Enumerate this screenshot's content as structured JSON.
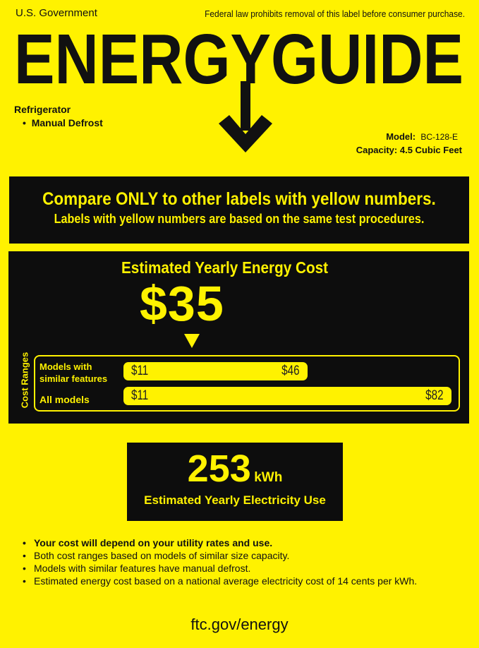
{
  "header": {
    "left": "U.S. Government",
    "right": "Federal law prohibits removal of this label before consumer purchase.",
    "title": "ENERGYGUIDE"
  },
  "product": {
    "type": "Refrigerator",
    "feature": "Manual Defrost",
    "model_label": "Model:",
    "model": "BC-128-E",
    "capacity_label": "Capacity:",
    "capacity": "4.5 Cubic Feet"
  },
  "compare": {
    "line1": "Compare ONLY to other labels with yellow numbers.",
    "line2": "Labels with yellow numbers are based on the same test procedures."
  },
  "cost": {
    "heading": "Estimated Yearly Energy Cost",
    "value": "$35",
    "ranges_label": "Cost Ranges",
    "similar": {
      "label1": "Models with",
      "label2": "similar features",
      "min": "$11",
      "max": "$46"
    },
    "all": {
      "label": "All models",
      "min": "$11",
      "max": "$82"
    }
  },
  "electricity": {
    "value": "253",
    "unit": "kWh",
    "label": "Estimated Yearly Electricity Use"
  },
  "notes": [
    "Your cost will depend on your utility rates and use.",
    "Both cost ranges based on models of similar size capacity.",
    "Models with similar features have manual defrost.",
    "Estimated energy cost based on a national average electricity cost of 14 cents per kWh."
  ],
  "footer": "ftc.gov/energy",
  "colors": {
    "background": "#fff200",
    "box": "#0d0d0d"
  }
}
